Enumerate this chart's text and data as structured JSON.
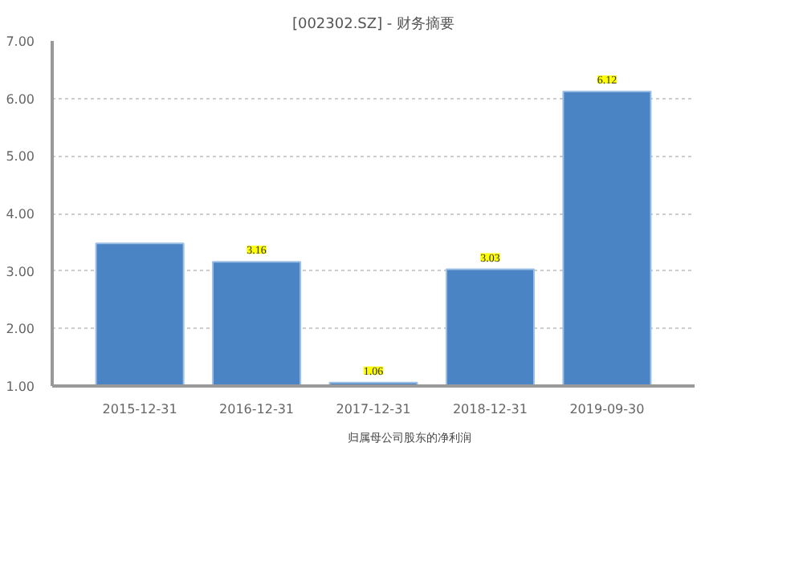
{
  "chart_data": {
    "type": "bar",
    "title": "[002302.SZ] - 财务摘要",
    "categories": [
      "2015-12-31",
      "2016-12-31",
      "2017-12-31",
      "2018-12-31",
      "2019-09-30"
    ],
    "series": [
      {
        "name": "归属母公司股东的净利润",
        "color": "#4a84c4",
        "values": [
          3.48,
          3.16,
          1.06,
          3.03,
          6.12
        ],
        "value_labels": [
          null,
          "3.16",
          "1.06",
          "3.03",
          "6.12"
        ]
      }
    ],
    "ylim": [
      1,
      7
    ],
    "yticks": [
      {
        "value": 1,
        "label": "1.00"
      },
      {
        "value": 2,
        "label": "2.00"
      },
      {
        "value": 3,
        "label": "3.00"
      },
      {
        "value": 4,
        "label": "4.00"
      },
      {
        "value": 5,
        "label": "5.00"
      },
      {
        "value": 6,
        "label": "6.00"
      },
      {
        "value": 7,
        "label": "7.00"
      }
    ],
    "grid": "y",
    "legend": "bottom"
  }
}
